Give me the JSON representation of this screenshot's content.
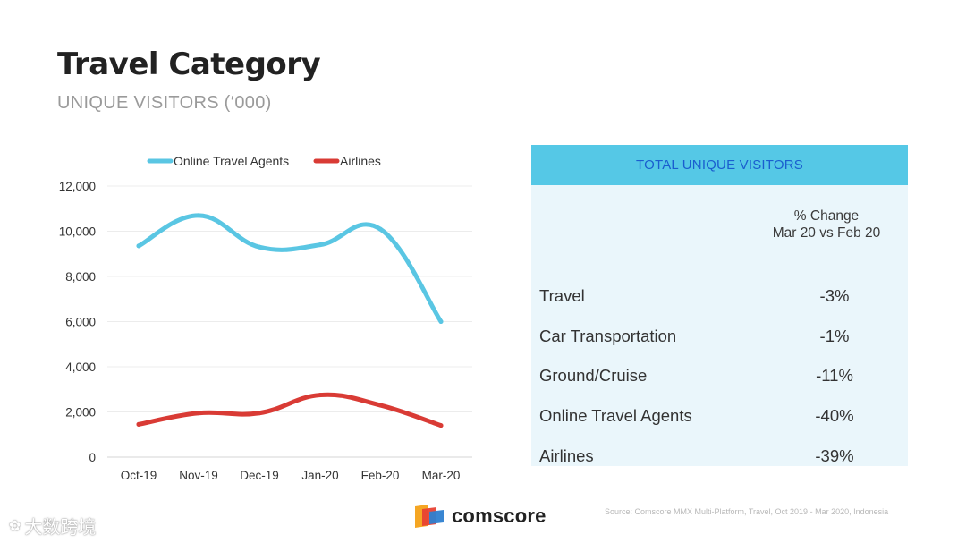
{
  "header": {
    "title": "Travel Category",
    "subtitle": "UNIQUE VISITORS (‘000)"
  },
  "chart_data": {
    "type": "line",
    "categories": [
      "Oct-19",
      "Nov-19",
      "Dec-19",
      "Jan-20",
      "Feb-20",
      "Mar-20"
    ],
    "series": [
      {
        "name": "Online Travel Agents",
        "color": "#5ac6e3",
        "values": [
          9350,
          10700,
          9300,
          9400,
          10100,
          6000
        ]
      },
      {
        "name": "Airlines",
        "color": "#d93b35",
        "values": [
          1450,
          1950,
          1950,
          2750,
          2300,
          1400
        ]
      }
    ],
    "yticks": [
      "0",
      "2,000",
      "4,000",
      "6,000",
      "8,000",
      "10,000",
      "12,000"
    ],
    "ylim": [
      0,
      12000
    ],
    "grid": true,
    "legend_position": "top"
  },
  "table": {
    "header": "TOTAL UNIQUE VISITORS",
    "col_head_line1": "% Change",
    "col_head_line2": "Mar 20 vs Feb 20",
    "rows": [
      {
        "label": "Travel",
        "value": "-3%"
      },
      {
        "label": "Car Transportation",
        "value": "-1%"
      },
      {
        "label": "Ground/Cruise",
        "value": "-11%"
      },
      {
        "label": "Online Travel Agents",
        "value": "-40%"
      },
      {
        "label": "Airlines",
        "value": "-39%"
      }
    ]
  },
  "footer": {
    "logo_text": "comscore",
    "logo_icon": "comscore-logo-icon",
    "source": "Source: Comscore MMX Multi-Platform, Travel, Oct 2019 - Mar 2020, Indonesia",
    "watermark": "大数跨境"
  }
}
